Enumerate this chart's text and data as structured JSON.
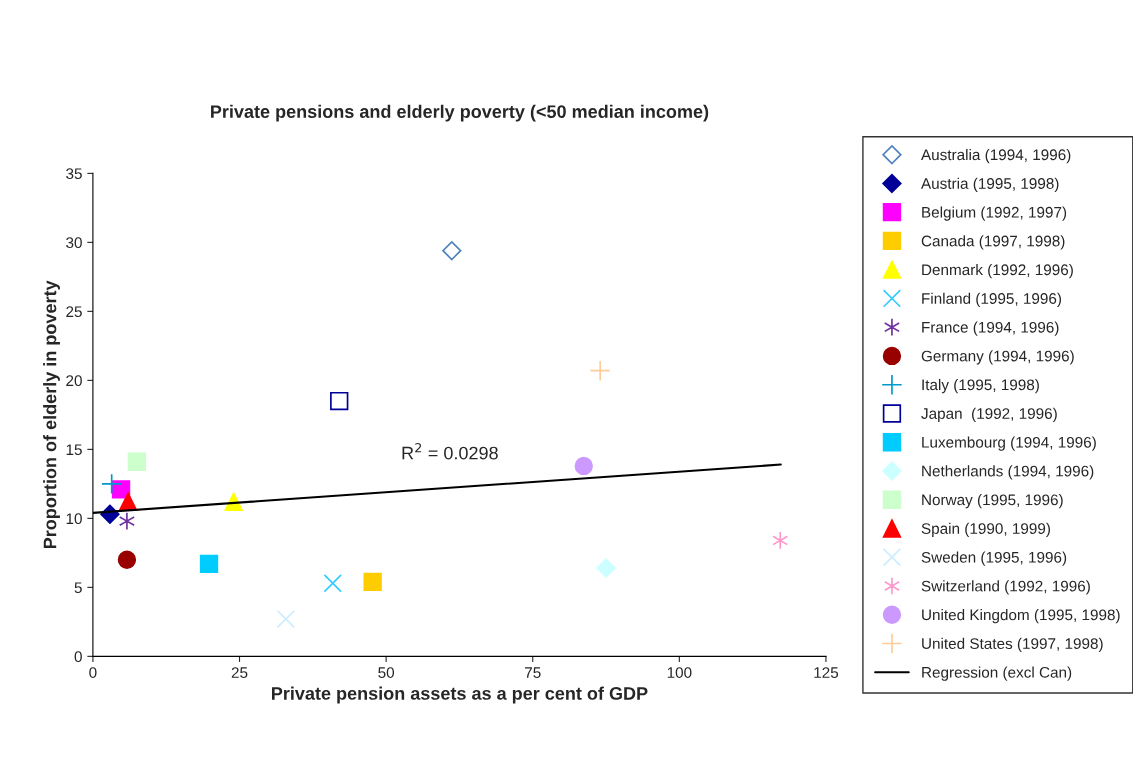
{
  "chart_data": {
    "type": "scatter",
    "title": "Private pensions and elderly poverty (<50 median income)",
    "xlabel": "Private pension assets as a per cent of GDP",
    "ylabel": "Proportion of elderly in poverty",
    "xlim": [
      0,
      125
    ],
    "xticks": [
      0,
      25,
      50,
      75,
      100,
      125
    ],
    "ylim": [
      0,
      35
    ],
    "yticks": [
      0,
      5,
      10,
      15,
      20,
      25,
      30,
      35
    ],
    "grid": false,
    "legend": "right",
    "annotations": [
      "R$^{2}$ = 0.0298"
    ],
    "series": [
      {
        "name": "Australia (1994, 1996)",
        "color": "#4f81bd",
        "marker": "diamond_open",
        "x": [
          61.2
        ],
        "values": [
          29.4
        ]
      },
      {
        "name": "Austria (1995, 1998)",
        "color": "#000099",
        "marker": "diamond",
        "x": [
          2.9
        ],
        "values": [
          10.3
        ]
      },
      {
        "name": "Belgium (1992, 1997)",
        "color": "#ff00ff",
        "marker": "square",
        "x": [
          4.8
        ],
        "values": [
          12.1
        ]
      },
      {
        "name": "Canada (1997, 1998)",
        "color": "#ffcc00",
        "marker": "square",
        "x": [
          47.7
        ],
        "values": [
          5.4
        ]
      },
      {
        "name": "Denmark (1992, 1996)",
        "color": "#ffff00",
        "marker": "triangle",
        "x": [
          24.0
        ],
        "values": [
          11.2
        ]
      },
      {
        "name": "Finland (1995, 1996)",
        "color": "#33ccff",
        "marker": "x",
        "x": [
          40.9
        ],
        "values": [
          5.3
        ]
      },
      {
        "name": "France (1994, 1996)",
        "color": "#7030a0",
        "marker": "cross",
        "x": [
          5.8
        ],
        "values": [
          9.8
        ]
      },
      {
        "name": "Germany (1994, 1996)",
        "color": "#990000",
        "marker": "circle",
        "x": [
          5.8
        ],
        "values": [
          7.0
        ]
      },
      {
        "name": "Italy (1995, 1998)",
        "color": "#0099cc",
        "marker": "plus",
        "x": [
          3.2
        ],
        "values": [
          12.5
        ]
      },
      {
        "name": "Japan  (1992, 1996)",
        "color": "#000099",
        "marker": "square_open",
        "x": [
          42.0
        ],
        "values": [
          18.5
        ]
      },
      {
        "name": "Luxembourg (1994, 1996)",
        "color": "#00ccff",
        "marker": "square",
        "x": [
          19.8
        ],
        "values": [
          6.7
        ]
      },
      {
        "name": "Netherlands (1994, 1996)",
        "color": "#ccffff",
        "marker": "diamond",
        "x": [
          87.5
        ],
        "values": [
          6.4
        ]
      },
      {
        "name": "Norway (1995, 1996)",
        "color": "#ccffcc",
        "marker": "square",
        "x": [
          7.5
        ],
        "values": [
          14.1
        ]
      },
      {
        "name": "Spain (1990, 1999)",
        "color": "#ff0000",
        "marker": "triangle",
        "x": [
          6.0
        ],
        "values": [
          11.2
        ]
      },
      {
        "name": "Sweden (1995, 1996)",
        "color": "#ccecff",
        "marker": "x",
        "x": [
          32.9
        ],
        "values": [
          2.7
        ]
      },
      {
        "name": "Switzerland (1992, 1996)",
        "color": "#ff99cc",
        "marker": "cross",
        "x": [
          117.2
        ],
        "values": [
          8.4
        ]
      },
      {
        "name": "United Kingdom (1995, 1998)",
        "color": "#cc99ff",
        "marker": "circle",
        "x": [
          83.7
        ],
        "values": [
          13.8
        ]
      },
      {
        "name": "United States (1997, 1998)",
        "color": "#ffcc99",
        "marker": "plus",
        "x": [
          86.5
        ],
        "values": [
          20.7
        ]
      },
      {
        "name": "Regression (excl Can)",
        "type": "line",
        "color": "#000000",
        "marker": "none",
        "line_style": "solid",
        "x": [
          0,
          117.3
        ],
        "values": [
          10.4,
          13.9
        ]
      }
    ]
  }
}
